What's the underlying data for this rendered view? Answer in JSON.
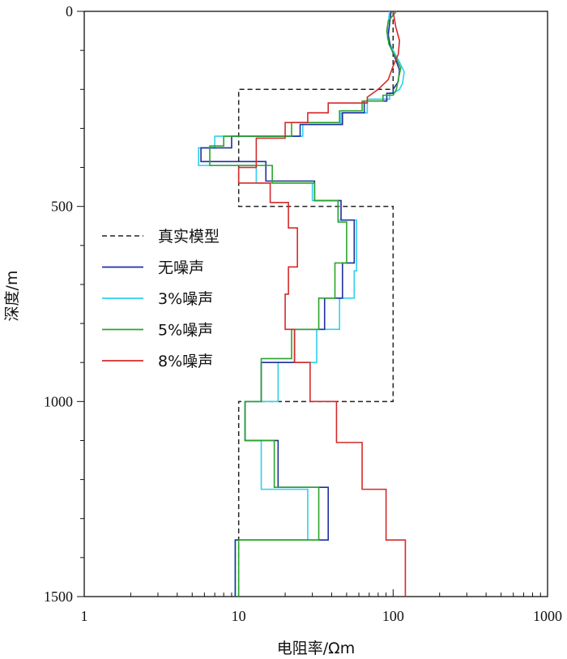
{
  "chart_data": {
    "type": "line",
    "xlabel": "电阻率/Ωm",
    "ylabel": "深度/m",
    "xscale": "log",
    "xlim": [
      1,
      1000
    ],
    "ylim": [
      0,
      1500
    ],
    "y_inverted": true,
    "x_ticks": [
      "1",
      "10",
      "100",
      "1000"
    ],
    "y_ticks": [
      "0",
      "500",
      "1000",
      "1500"
    ],
    "legend_position": "left-middle",
    "grid": false,
    "series": [
      {
        "name": "真实模型",
        "color": "#222222",
        "dashed": true,
        "points": [
          [
            100,
            0
          ],
          [
            100,
            200
          ],
          [
            10,
            200
          ],
          [
            10,
            500
          ],
          [
            100,
            500
          ],
          [
            100,
            1000
          ],
          [
            10,
            1000
          ],
          [
            10,
            1500
          ]
        ]
      },
      {
        "name": "无噪声",
        "color": "#1f2f9e",
        "dashed": false,
        "points": [
          [
            97,
            0
          ],
          [
            95,
            30
          ],
          [
            93,
            60
          ],
          [
            96,
            90
          ],
          [
            103,
            120
          ],
          [
            110,
            150
          ],
          [
            108,
            180
          ],
          [
            100,
            200
          ],
          [
            100,
            210
          ],
          [
            91,
            210
          ],
          [
            91,
            230
          ],
          [
            65,
            230
          ],
          [
            65,
            260
          ],
          [
            47,
            260
          ],
          [
            47,
            290
          ],
          [
            25,
            290
          ],
          [
            25,
            320
          ],
          [
            9,
            320
          ],
          [
            9,
            350
          ],
          [
            5.7,
            350
          ],
          [
            5.7,
            385
          ],
          [
            15,
            385
          ],
          [
            15,
            435
          ],
          [
            31,
            435
          ],
          [
            31,
            485
          ],
          [
            46,
            485
          ],
          [
            46,
            535
          ],
          [
            56,
            535
          ],
          [
            56,
            645
          ],
          [
            47,
            645
          ],
          [
            47,
            735
          ],
          [
            36,
            735
          ],
          [
            36,
            815
          ],
          [
            23,
            815
          ],
          [
            23,
            900
          ],
          [
            14,
            900
          ],
          [
            14,
            1000
          ],
          [
            11,
            1000
          ],
          [
            11,
            1100
          ],
          [
            18,
            1100
          ],
          [
            18,
            1220
          ],
          [
            38,
            1220
          ],
          [
            38,
            1355
          ],
          [
            9.5,
            1355
          ],
          [
            9.5,
            1500
          ]
        ]
      },
      {
        "name": "3%噪声",
        "color": "#2fd0ee",
        "dashed": false,
        "points": [
          [
            95,
            0
          ],
          [
            92,
            40
          ],
          [
            92,
            70
          ],
          [
            100,
            100
          ],
          [
            110,
            130
          ],
          [
            118,
            155
          ],
          [
            115,
            185
          ],
          [
            110,
            200
          ],
          [
            100,
            210
          ],
          [
            95,
            210
          ],
          [
            95,
            225
          ],
          [
            68,
            225
          ],
          [
            68,
            260
          ],
          [
            46,
            260
          ],
          [
            46,
            290
          ],
          [
            26,
            290
          ],
          [
            26,
            320
          ],
          [
            7,
            320
          ],
          [
            7,
            350
          ],
          [
            5.5,
            350
          ],
          [
            5.5,
            395
          ],
          [
            13,
            395
          ],
          [
            13,
            440
          ],
          [
            30,
            440
          ],
          [
            30,
            485
          ],
          [
            44,
            485
          ],
          [
            44,
            535
          ],
          [
            58,
            535
          ],
          [
            58,
            665
          ],
          [
            56,
            665
          ],
          [
            56,
            735
          ],
          [
            45,
            735
          ],
          [
            45,
            815
          ],
          [
            32,
            815
          ],
          [
            32,
            900
          ],
          [
            18,
            900
          ],
          [
            18,
            1000
          ],
          [
            11,
            1000
          ],
          [
            11,
            1100
          ],
          [
            14,
            1100
          ],
          [
            14,
            1225
          ],
          [
            28,
            1225
          ],
          [
            28,
            1355
          ],
          [
            9.5,
            1355
          ],
          [
            9.5,
            1500
          ]
        ]
      },
      {
        "name": "5%噪声",
        "color": "#2aa52a",
        "dashed": false,
        "points": [
          [
            105,
            0
          ],
          [
            93,
            25
          ],
          [
            91,
            50
          ],
          [
            94,
            85
          ],
          [
            103,
            115
          ],
          [
            112,
            145
          ],
          [
            108,
            175
          ],
          [
            105,
            200
          ],
          [
            100,
            215
          ],
          [
            86,
            215
          ],
          [
            86,
            230
          ],
          [
            63,
            230
          ],
          [
            63,
            255
          ],
          [
            45,
            255
          ],
          [
            45,
            285
          ],
          [
            22,
            285
          ],
          [
            22,
            320
          ],
          [
            8,
            320
          ],
          [
            8,
            345
          ],
          [
            6.5,
            345
          ],
          [
            6.5,
            395
          ],
          [
            16.5,
            395
          ],
          [
            16.5,
            440
          ],
          [
            31,
            440
          ],
          [
            31,
            485
          ],
          [
            44,
            485
          ],
          [
            44,
            540
          ],
          [
            50,
            540
          ],
          [
            50,
            645
          ],
          [
            42,
            645
          ],
          [
            42,
            735
          ],
          [
            33,
            735
          ],
          [
            33,
            815
          ],
          [
            22,
            815
          ],
          [
            22,
            890
          ],
          [
            14,
            890
          ],
          [
            14,
            1000
          ],
          [
            11,
            1000
          ],
          [
            11,
            1100
          ],
          [
            17,
            1100
          ],
          [
            17,
            1220
          ],
          [
            33,
            1220
          ],
          [
            33,
            1355
          ],
          [
            10,
            1355
          ],
          [
            10,
            1500
          ]
        ]
      },
      {
        "name": "8%噪声",
        "color": "#d42a2a",
        "dashed": false,
        "points": [
          [
            100,
            0
          ],
          [
            104,
            40
          ],
          [
            110,
            75
          ],
          [
            108,
            110
          ],
          [
            100,
            140
          ],
          [
            93,
            175
          ],
          [
            80,
            200
          ],
          [
            68,
            220
          ],
          [
            68,
            235
          ],
          [
            38,
            235
          ],
          [
            38,
            260
          ],
          [
            28,
            260
          ],
          [
            28,
            285
          ],
          [
            20,
            285
          ],
          [
            20,
            325
          ],
          [
            13,
            325
          ],
          [
            13,
            400
          ],
          [
            10,
            400
          ],
          [
            10,
            440
          ],
          [
            16,
            440
          ],
          [
            16,
            490
          ],
          [
            21,
            490
          ],
          [
            21,
            555
          ],
          [
            24,
            555
          ],
          [
            24,
            655
          ],
          [
            21,
            655
          ],
          [
            21,
            725
          ],
          [
            20,
            725
          ],
          [
            20,
            815
          ],
          [
            23,
            815
          ],
          [
            23,
            900
          ],
          [
            29,
            900
          ],
          [
            29,
            1000
          ],
          [
            43,
            1000
          ],
          [
            43,
            1105
          ],
          [
            63,
            1105
          ],
          [
            63,
            1225
          ],
          [
            90,
            1225
          ],
          [
            90,
            1355
          ],
          [
            120,
            1355
          ],
          [
            120,
            1500
          ]
        ]
      }
    ]
  }
}
